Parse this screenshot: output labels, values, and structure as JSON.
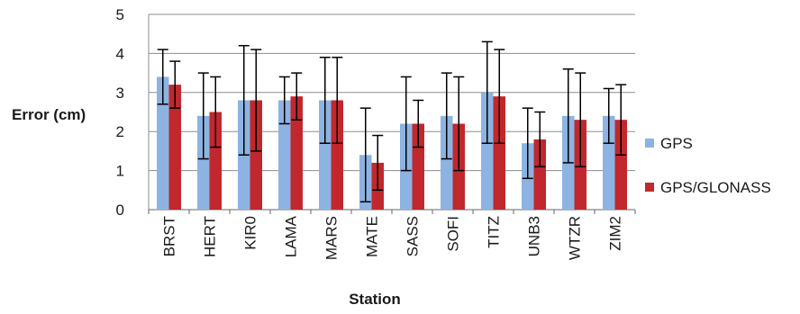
{
  "chart_data": {
    "type": "bar",
    "xlabel": "Station",
    "ylabel": "Error (cm)",
    "ylim": [
      0,
      5
    ],
    "yticks": [
      0,
      1,
      2,
      3,
      4,
      5
    ],
    "grid": true,
    "legend_position": "right",
    "categories": [
      "BRST",
      "HERT",
      "KIR0",
      "LAMA",
      "MARS",
      "MATE",
      "SASS",
      "SOFI",
      "TITZ",
      "UNB3",
      "WTZR",
      "ZIM2"
    ],
    "series": [
      {
        "name": "GPS",
        "color": "#8db3e2",
        "values": [
          3.4,
          2.4,
          2.8,
          2.8,
          2.8,
          1.4,
          2.2,
          2.4,
          3.0,
          1.7,
          2.4,
          2.4
        ],
        "error_low": [
          2.7,
          1.3,
          1.4,
          2.2,
          1.7,
          0.2,
          1.0,
          1.3,
          1.7,
          0.8,
          1.2,
          1.7
        ],
        "error_high": [
          4.1,
          3.5,
          4.2,
          3.4,
          3.9,
          2.6,
          3.4,
          3.5,
          4.3,
          2.6,
          3.6,
          3.1
        ]
      },
      {
        "name": "GPS/GLONASS",
        "color": "#c0282d",
        "values": [
          3.2,
          2.5,
          2.8,
          2.9,
          2.8,
          1.2,
          2.2,
          2.2,
          2.9,
          1.8,
          2.3,
          2.3
        ],
        "error_low": [
          2.6,
          1.6,
          1.5,
          2.3,
          1.7,
          0.5,
          1.6,
          1.0,
          1.7,
          1.1,
          1.1,
          1.4
        ],
        "error_high": [
          3.8,
          3.4,
          4.1,
          3.5,
          3.9,
          1.9,
          2.8,
          3.4,
          4.1,
          2.5,
          3.5,
          3.2
        ]
      }
    ]
  }
}
